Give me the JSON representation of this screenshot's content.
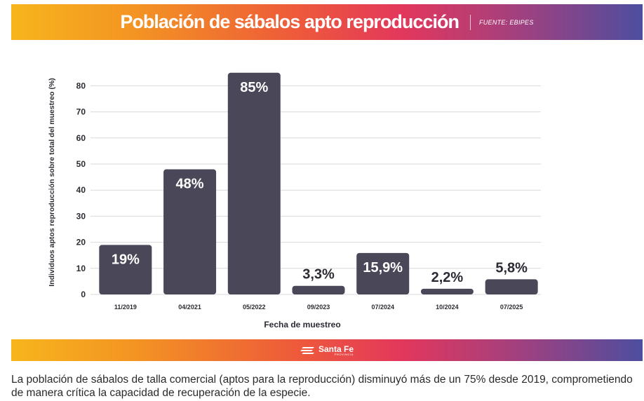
{
  "header": {
    "title": "Población de sábalos apto reproducción",
    "source": "FUENTE: EBIPES"
  },
  "footer": {
    "logo_name": "Santa Fe",
    "logo_sub": "PROVINCIA"
  },
  "caption": "La población de sábalos de talla comercial (aptos para la reproducción) disminuyó más de un 75% desde 2019, comprometiendo de manera crítica la capacidad de recuperación de la especie.",
  "colors": {
    "bar": "#4a4858",
    "grid": "#d9d9d9",
    "text": "#2b2b33",
    "label_on_bar": "#ffffff"
  },
  "chart_data": {
    "type": "bar",
    "title": "Población de sábalos apto reproducción",
    "xlabel": "Fecha de muestreo",
    "ylabel": "Individuos aptos reproducción sobre total del muestreo (%)",
    "categories": [
      "11/2019",
      "04/2021",
      "05/2022",
      "09/2023",
      "07/2024",
      "10/2024",
      "07/2025"
    ],
    "values": [
      19,
      48,
      85,
      3.3,
      15.9,
      2.2,
      5.8
    ],
    "data_labels": [
      "19%",
      "48%",
      "85%",
      "3,3%",
      "15,9%",
      "2,2%",
      "5,8%"
    ],
    "yticks": [
      0,
      10,
      20,
      30,
      40,
      50,
      60,
      70,
      80
    ],
    "ylim": [
      0,
      85
    ],
    "grid": true,
    "legend": "none"
  }
}
